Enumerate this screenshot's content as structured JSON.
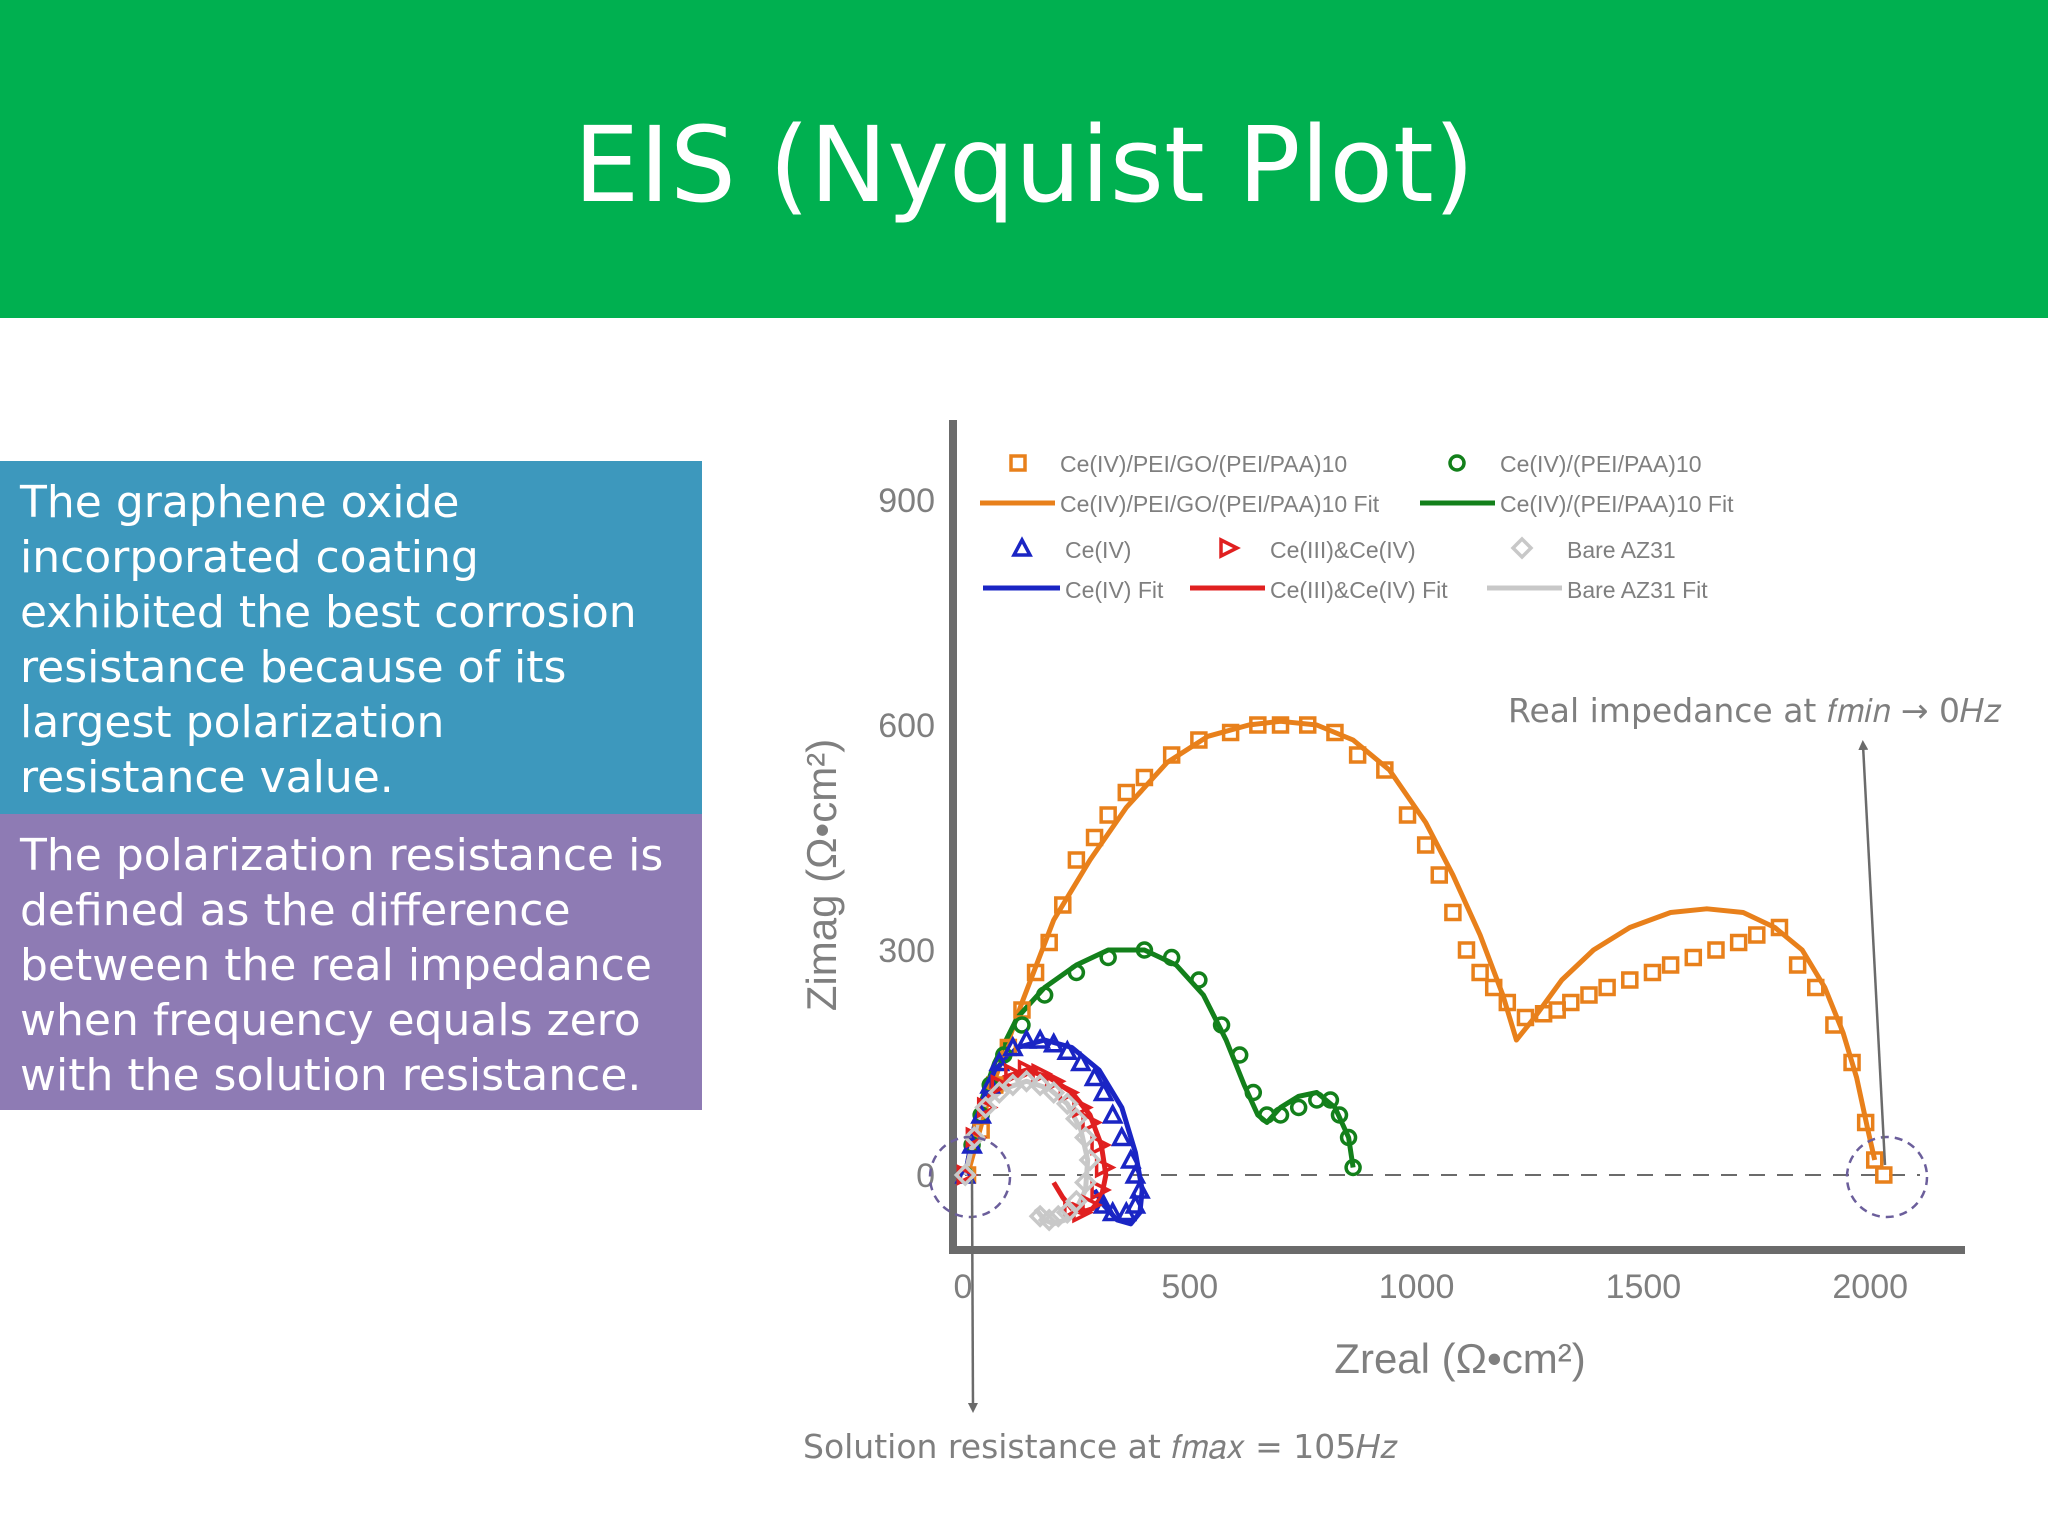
{
  "slide": {
    "title": "EIS (Nyquist Plot)",
    "accent_color": "#00b050",
    "note_blue": "The graphene oxide incorporated coating exhibited the best corrosion resistance because of its largest polarization resistance value.",
    "note_purple": "The polarization resistance is defined as the difference between the real impedance when frequency equals zero with the solution resistance.",
    "note_blue_color": "#3d98bd",
    "note_purple_color": "#8e7bb4"
  },
  "chart_data": {
    "type": "scatter",
    "xlabel": "Zreal (Ω•cm²)",
    "ylabel": "Zimag (Ω•cm²)",
    "xlim": [
      -20,
      2200
    ],
    "ylim": [
      -160,
      1000
    ],
    "xticks": [
      0,
      500,
      1000,
      1500,
      2000
    ],
    "yticks": [
      0,
      300,
      600,
      900
    ],
    "xtick_labels": [
      "0",
      "500",
      "1000",
      "1500",
      "2000"
    ],
    "ytick_labels": [
      "0",
      "300",
      "600",
      "900"
    ],
    "grid": false,
    "legend_position": "top",
    "series": [
      {
        "name": "Ce(IV)/PEI/GO/(PEI/PAA)10",
        "marker": "square",
        "color": "#e8801b",
        "x": [
          10,
          40,
          70,
          100,
          130,
          160,
          190,
          220,
          250,
          290,
          320,
          360,
          400,
          460,
          520,
          590,
          650,
          700,
          760,
          820,
          870,
          930,
          980,
          1020,
          1050,
          1080,
          1110,
          1140,
          1170,
          1200,
          1240,
          1280,
          1310,
          1340,
          1380,
          1420,
          1470,
          1520,
          1560,
          1610,
          1660,
          1710,
          1750,
          1800,
          1840,
          1880,
          1920,
          1960,
          1990,
          2010,
          2030
        ],
        "y": [
          0,
          60,
          120,
          170,
          220,
          270,
          310,
          360,
          420,
          450,
          480,
          510,
          530,
          560,
          580,
          590,
          600,
          600,
          600,
          590,
          560,
          540,
          480,
          440,
          400,
          350,
          300,
          270,
          250,
          230,
          210,
          215,
          220,
          230,
          240,
          250,
          260,
          270,
          280,
          290,
          300,
          310,
          320,
          330,
          280,
          250,
          200,
          150,
          70,
          20,
          0
        ],
        "fit_name": "Ce(IV)/PEI/GO/(PEI/PAA)10 Fit",
        "fit_x": [
          10,
          60,
          130,
          200,
          280,
          360,
          450,
          540,
          630,
          700,
          780,
          860,
          940,
          1020,
          1080,
          1140,
          1190,
          1220,
          1260,
          1320,
          1390,
          1470,
          1560,
          1640,
          1720,
          1790,
          1850,
          1900,
          1940,
          1970,
          1995,
          2010
        ],
        "fit_y": [
          0,
          110,
          230,
          340,
          420,
          490,
          550,
          585,
          600,
          605,
          600,
          580,
          540,
          470,
          400,
          320,
          240,
          180,
          210,
          260,
          300,
          330,
          350,
          355,
          350,
          330,
          300,
          250,
          190,
          130,
          60,
          20
        ]
      },
      {
        "name": "Ce(IV)/(PEI/PAA)10",
        "marker": "circle",
        "color": "#13801b",
        "x": [
          5,
          20,
          40,
          60,
          90,
          130,
          180,
          250,
          320,
          400,
          460,
          520,
          570,
          610,
          640,
          670,
          700,
          740,
          780,
          810,
          830,
          850,
          860
        ],
        "y": [
          0,
          40,
          80,
          120,
          160,
          200,
          240,
          270,
          290,
          300,
          290,
          260,
          200,
          160,
          110,
          80,
          80,
          90,
          100,
          100,
          80,
          50,
          10
        ],
        "fit_name": "Ce(IV)/(PEI/PAA)10 Fit",
        "fit_x": [
          5,
          30,
          70,
          120,
          180,
          250,
          320,
          400,
          470,
          530,
          580,
          620,
          650,
          670,
          700,
          740,
          780,
          820,
          850,
          860
        ],
        "fit_y": [
          0,
          80,
          150,
          210,
          250,
          280,
          300,
          300,
          280,
          240,
          180,
          120,
          80,
          70,
          90,
          105,
          110,
          90,
          50,
          10
        ]
      },
      {
        "name": "Ce(IV)",
        "marker": "triangle",
        "color": "#1a25c4",
        "x": [
          5,
          20,
          40,
          60,
          80,
          110,
          140,
          170,
          200,
          230,
          260,
          290,
          310,
          330,
          350,
          370,
          380,
          390,
          380,
          360,
          330,
          310
        ],
        "y": [
          0,
          40,
          80,
          120,
          150,
          170,
          180,
          180,
          175,
          165,
          150,
          130,
          110,
          80,
          50,
          20,
          0,
          -20,
          -40,
          -50,
          -50,
          -40
        ],
        "fit_name": "Ce(IV) Fit",
        "fit_x": [
          5,
          30,
          70,
          120,
          180,
          240,
          300,
          350,
          380,
          395,
          390,
          370,
          340,
          310,
          290
        ],
        "fit_y": [
          0,
          80,
          140,
          170,
          180,
          170,
          140,
          90,
          30,
          -20,
          -50,
          -65,
          -60,
          -40,
          -20
        ]
      },
      {
        "name": "Ce(III)&Ce(IV)",
        "marker": "triangle-right",
        "color": "#e02020",
        "x": [
          5,
          25,
          50,
          80,
          110,
          140,
          170,
          200,
          230,
          260,
          280,
          300,
          310,
          300,
          280,
          260,
          240
        ],
        "y": [
          0,
          50,
          90,
          120,
          135,
          140,
          135,
          125,
          110,
          90,
          70,
          40,
          10,
          -20,
          -40,
          -50,
          -45
        ],
        "fit_name": "Ce(III)&Ce(IV)  Fit",
        "fit_x": [
          5,
          40,
          90,
          140,
          190,
          240,
          280,
          305,
          315,
          305,
          285,
          260,
          240,
          220,
          200
        ],
        "fit_y": [
          0,
          90,
          130,
          140,
          130,
          110,
          80,
          40,
          0,
          -30,
          -45,
          -50,
          -45,
          -30,
          -10
        ]
      },
      {
        "name": "Bare AZ31",
        "marker": "diamond",
        "color": "#c8c8c8",
        "x": [
          5,
          25,
          50,
          80,
          110,
          140,
          170,
          200,
          230,
          250,
          270,
          280,
          270,
          250,
          230,
          210,
          190,
          170
        ],
        "y": [
          0,
          50,
          90,
          110,
          120,
          125,
          120,
          110,
          95,
          75,
          50,
          20,
          -10,
          -35,
          -50,
          -55,
          -60,
          -55
        ],
        "fit_name": "Bare AZ31 Fit",
        "fit_x": [
          5,
          40,
          90,
          140,
          190,
          230,
          260,
          275,
          270,
          250,
          225,
          200,
          180,
          160
        ],
        "fit_y": [
          0,
          90,
          115,
          125,
          115,
          95,
          60,
          20,
          -20,
          -45,
          -60,
          -65,
          -60,
          -45
        ]
      }
    ],
    "annotations": {
      "real_impedance": "Real impedance at 𝑓𝑚𝑖𝑛 → 0𝐻𝑧",
      "solution_resistance": "Solution resistance at 𝑓𝑚𝑎𝑥 = 105𝐻𝑧"
    }
  }
}
